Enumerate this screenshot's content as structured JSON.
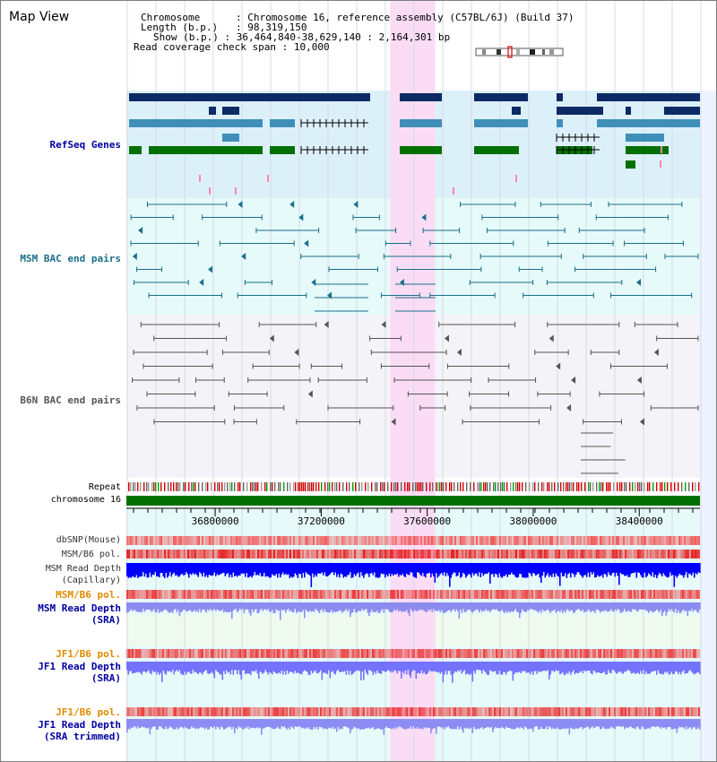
{
  "page": {
    "title": "Map View"
  },
  "info": {
    "chromosome_label": "Chromosome",
    "chromosome_value": "Chromosome 16, reference assembly (C57BL/6J) (Build 37)",
    "length_label": "Length (b.p.)",
    "length_value": "98,319,150",
    "show_label": "Show (b.p.)",
    "show_value": "36,464,840-38,629,140 : 2,164,301 bp",
    "coverage_label": "Read coverage check span",
    "coverage_value": "10,000"
  },
  "tracks": {
    "refseq": "RefSeq Genes",
    "msm_bac": "MSM BAC end pairs",
    "b6n_bac": "B6N BAC end pairs",
    "repeat": "Repeat",
    "chromosome": "chromosome 16",
    "dbsnp": "dbSNP(Mouse)",
    "msm_b6_pol_1": "MSM/B6 pol.",
    "msm_read_depth_cap_1": "MSM Read Depth",
    "msm_read_depth_cap_2": "(Capillary)",
    "msm_b6_pol_2": "MSM/B6 pol.",
    "msm_read_depth_sra_1": "MSM Read Depth",
    "msm_read_depth_sra_2": "(SRA)",
    "jf1_b6_pol_1": "JF1/B6 pol.",
    "jf1_read_depth_1": "JF1 Read Depth",
    "jf1_read_depth_2": "(SRA)",
    "jf1_b6_pol_2": "JF1/B6 pol.",
    "jf1_read_depth_trim_1": "JF1 Read Depth",
    "jf1_read_depth_trim_2": "(SRA trimmed)"
  },
  "axis": {
    "ticks": [
      "36800000",
      "37200000",
      "37600000",
      "38000000",
      "38400000"
    ],
    "tick_values": [
      36800000,
      37200000,
      37600000,
      38000000,
      38400000
    ],
    "range": [
      36464840,
      38629140
    ]
  },
  "highlight": {
    "start": 37460000,
    "end": 37630000
  },
  "colors": {
    "refseq_bg": "#dcf0fa",
    "msm_bg": "#e6fafa",
    "b6n_bg": "#f4f4f8",
    "highlight": "#fadcf5",
    "gene_navy": "#0c2a63",
    "gene_steel": "#3f8fb9",
    "gene_green": "#007000",
    "msm_pair": "#1a6f89",
    "b6n_pair": "#555555",
    "chrom": "#007000",
    "depth_blue": "#0000ff",
    "depth_light": "#7373ff",
    "label_blue": "#0000a0",
    "label_orange": "#e08a00"
  }
}
